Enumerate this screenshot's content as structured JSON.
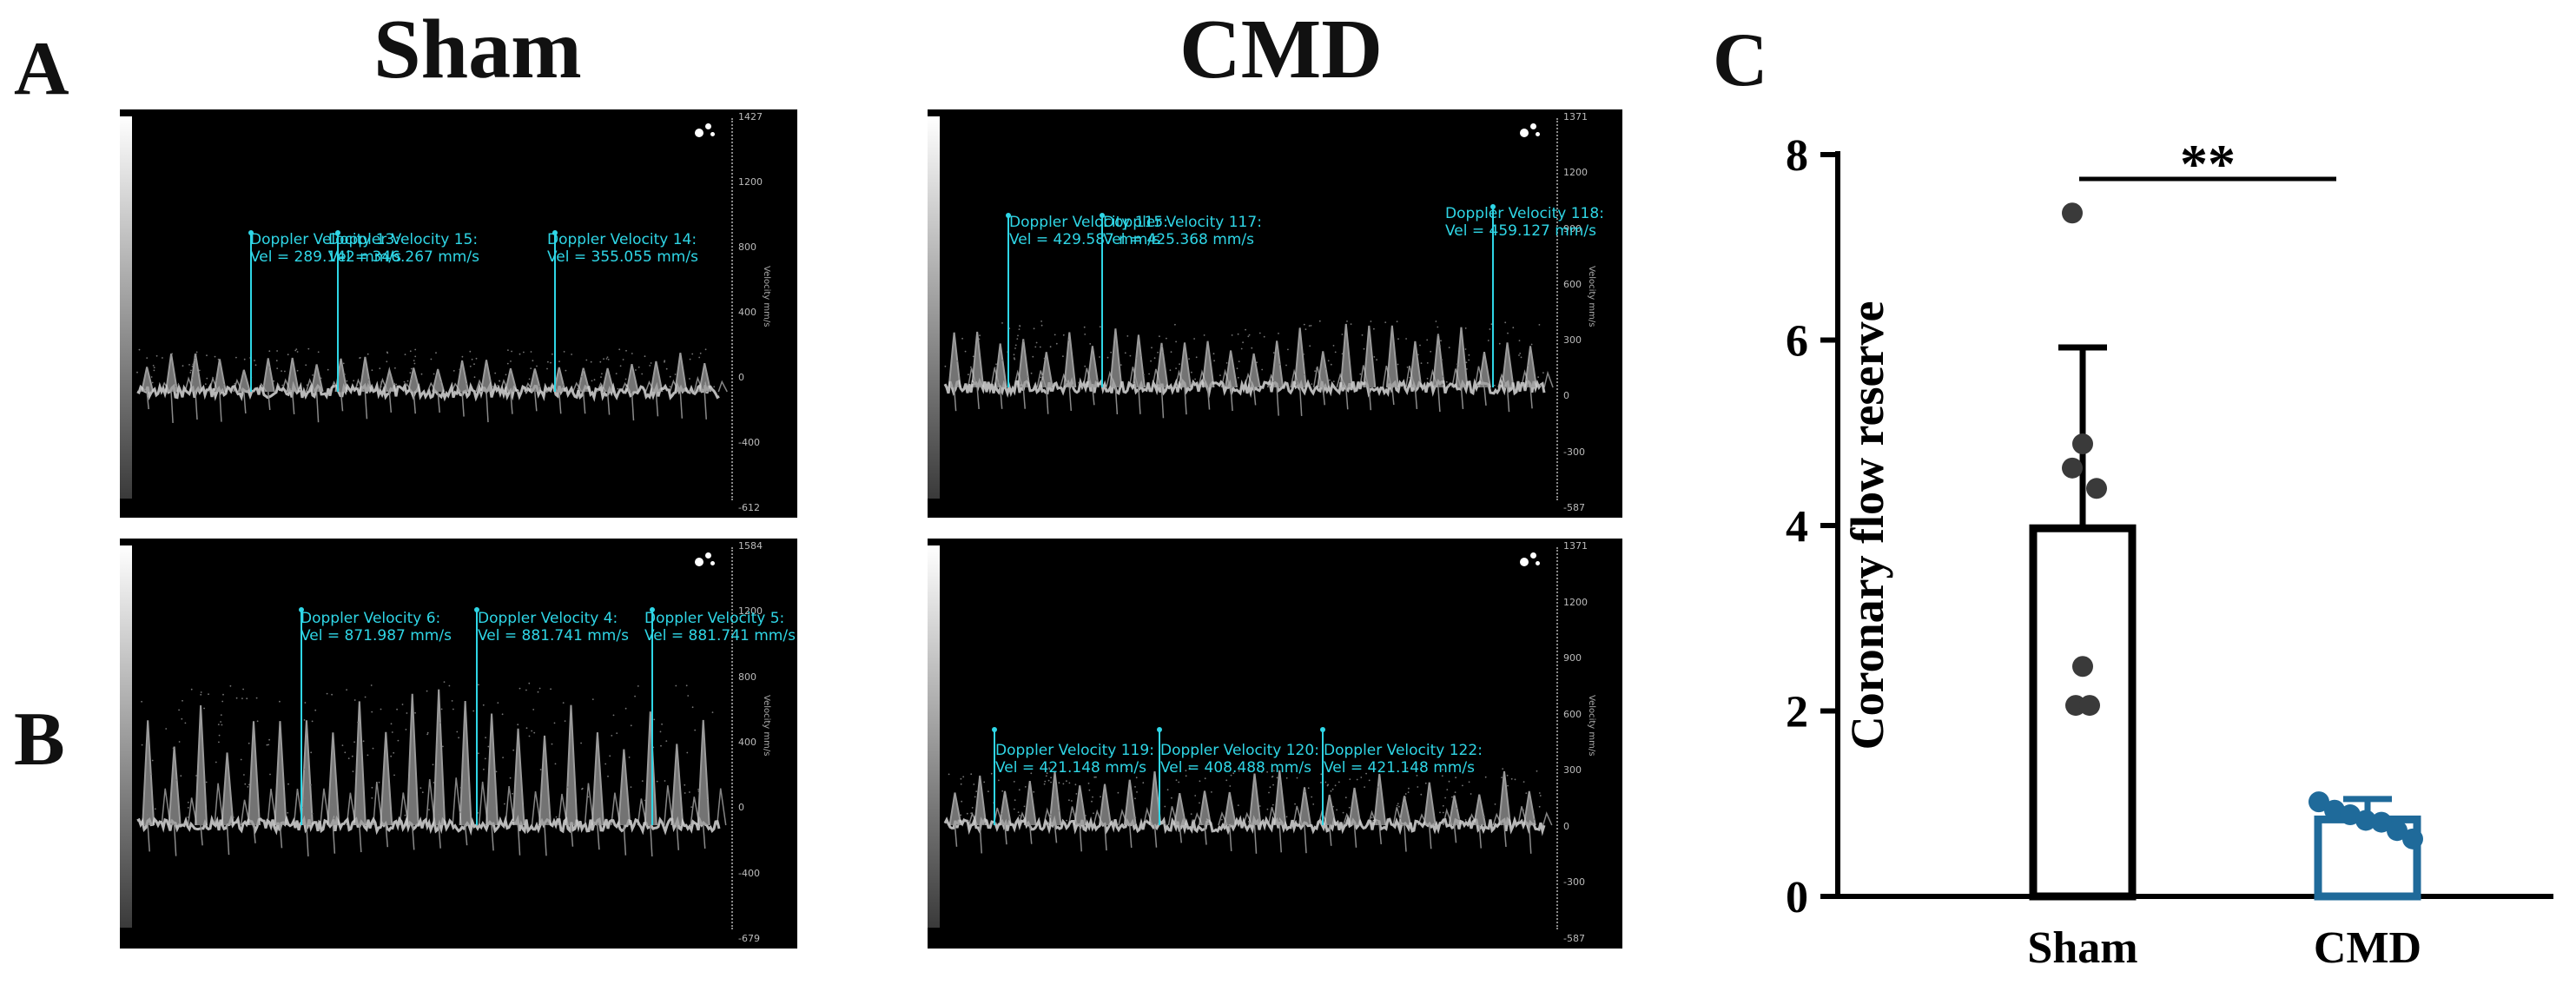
{
  "figure": {
    "panel_labels": {
      "a": "A",
      "b": "B",
      "c": "C"
    },
    "column_titles": {
      "sham": "Sham",
      "cmd": "CMD"
    }
  },
  "ultrasound": {
    "a_sham": {
      "scale": [
        "1427",
        "1200",
        "800",
        "400",
        "0",
        "-400",
        "-612"
      ],
      "axis_title": "Velocity mm/s",
      "measurements": [
        {
          "name": "Doppler Velocity 13:",
          "vel": "Vel = 289.142 mm/s"
        },
        {
          "name": "Doppler Velocity 15:",
          "vel": "Vel = 346.267 mm/s"
        },
        {
          "name": "Doppler Velocity 14:",
          "vel": "Vel = 355.055 mm/s"
        }
      ]
    },
    "a_cmd": {
      "scale": [
        "1371",
        "1200",
        "900",
        "600",
        "300",
        "0",
        "-300",
        "-587"
      ],
      "axis_title": "Velocity mm/s",
      "measurements": [
        {
          "name": "Doppler Velocity 115:",
          "vel": "Vel = 429.587 mm/s"
        },
        {
          "name": "Doppler Velocity 117:",
          "vel": "Vel = 425.368 mm/s"
        },
        {
          "name": "Doppler Velocity 118:",
          "vel": "Vel = 459.127 mm/s"
        }
      ]
    },
    "b_sham": {
      "scale": [
        "1584",
        "1200",
        "800",
        "400",
        "0",
        "-400",
        "-679"
      ],
      "axis_title": "Velocity mm/s",
      "measurements": [
        {
          "name": "Doppler Velocity 6:",
          "vel": "Vel = 871.987 mm/s"
        },
        {
          "name": "Doppler Velocity 4:",
          "vel": "Vel = 881.741 mm/s"
        },
        {
          "name": "Doppler Velocity 5:",
          "vel": "Vel = 881.741 mm/s"
        }
      ]
    },
    "b_cmd": {
      "scale": [
        "1371",
        "1200",
        "900",
        "600",
        "300",
        "0",
        "-300",
        "-587"
      ],
      "axis_title": "Velocity mm/s",
      "measurements": [
        {
          "name": "Doppler Velocity 119:",
          "vel": "Vel = 421.148 mm/s"
        },
        {
          "name": "Doppler Velocity 120:",
          "vel": "Vel = 408.488 mm/s"
        },
        {
          "name": "Doppler Velocity 122:",
          "vel": "Vel = 421.148 mm/s"
        }
      ]
    }
  },
  "chart_data": {
    "type": "bar",
    "categories": [
      "Sham",
      "CMD"
    ],
    "values": [
      3.97,
      0.83
    ],
    "error": [
      1.95,
      0.22
    ],
    "points": [
      [
        7.37,
        4.88,
        4.62,
        4.4,
        2.48,
        2.06,
        2.06
      ],
      [
        1.02,
        0.93,
        0.88,
        0.82,
        0.8,
        0.71,
        0.62
      ]
    ],
    "colors": [
      "#000000",
      "#1f6a9a"
    ],
    "ylabel": "Coronary flow reserve",
    "ylim": [
      0,
      8
    ],
    "yticks": [
      "0",
      "2",
      "4",
      "6",
      "8"
    ],
    "significance": "**"
  }
}
